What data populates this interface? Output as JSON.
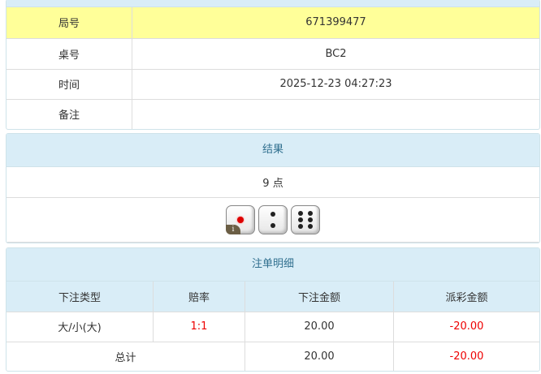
{
  "info": {
    "rows": [
      {
        "label": "局号",
        "value": "671399477"
      },
      {
        "label": "桌号",
        "value": "BC2"
      },
      {
        "label": "时间",
        "value": "2025-12-23 04:27:23"
      },
      {
        "label": "备注",
        "value": ""
      }
    ]
  },
  "result": {
    "title": "结果",
    "points": "9 点",
    "dice": [
      1,
      2,
      6
    ],
    "info_badge": "i"
  },
  "bets": {
    "title": "注单明细",
    "headers": [
      "下注类型",
      "赔率",
      "下注金额",
      "派彩金额"
    ],
    "rows": [
      {
        "type": "大/小(大)",
        "odds": "1:1",
        "amount": "20.00",
        "payout": "-20.00"
      }
    ],
    "total": {
      "label": "总计",
      "amount": "20.00",
      "payout": "-20.00"
    }
  },
  "colors": {
    "highlight": "#ffff99",
    "header": "#d9edf7",
    "negative": "#ee0000"
  }
}
